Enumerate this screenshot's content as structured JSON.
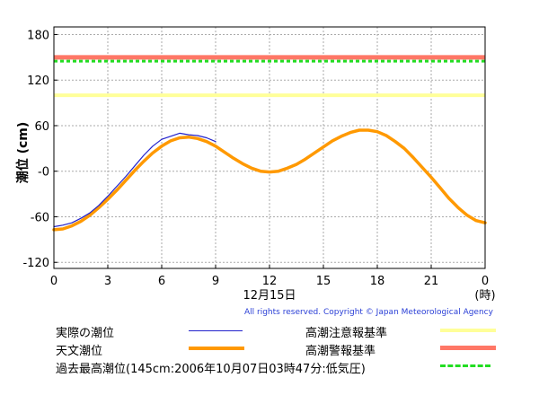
{
  "chart_data": {
    "type": "line",
    "ylabel": "潮位 (cm)",
    "date_label": "12月15日",
    "end_label": "(時)",
    "x_ticks": [
      "0",
      "3",
      "6",
      "9",
      "12",
      "15",
      "18",
      "21",
      "0"
    ],
    "y_ticks": [
      "180",
      "120",
      "60",
      "-0",
      "-60",
      "-120"
    ],
    "xlim": [
      0,
      24
    ],
    "ylim": [
      -128,
      190
    ],
    "grid": true,
    "series": [
      {
        "name": "実際の潮位",
        "color": "#2222cc",
        "x": [
          0,
          0.5,
          1,
          1.5,
          2,
          2.5,
          3,
          3.5,
          4,
          4.5,
          5,
          5.5,
          6,
          6.5,
          7,
          7.5,
          8,
          8.5,
          9
        ],
        "y": [
          -73,
          -71,
          -68,
          -62,
          -55,
          -45,
          -33,
          -20,
          -7,
          7,
          21,
          33,
          42,
          46,
          50,
          48,
          47,
          44,
          39
        ]
      },
      {
        "name": "天文潮位",
        "color": "#ff9900",
        "x": [
          0,
          0.5,
          1,
          1.5,
          2,
          2.5,
          3,
          3.5,
          4,
          4.5,
          5,
          5.5,
          6,
          6.5,
          7,
          7.5,
          8,
          8.5,
          9,
          9.5,
          10,
          10.5,
          11,
          11.5,
          12,
          12.5,
          13,
          13.5,
          14,
          14.5,
          15,
          15.5,
          16,
          16.5,
          17,
          17.5,
          18,
          18.5,
          19,
          19.5,
          20,
          20.5,
          21,
          21.5,
          22,
          22.5,
          23,
          23.5,
          24
        ],
        "y": [
          -77,
          -76,
          -72,
          -66,
          -58,
          -48,
          -37,
          -25,
          -12,
          1,
          13,
          24,
          33,
          40,
          44,
          45,
          43,
          39,
          33,
          25,
          17,
          10,
          4,
          0,
          -1,
          0,
          4,
          9,
          16,
          24,
          32,
          40,
          46,
          51,
          54,
          54,
          52,
          47,
          39,
          30,
          18,
          5,
          -8,
          -22,
          -36,
          -48,
          -58,
          -65,
          -68
        ]
      }
    ],
    "reference_lines": [
      {
        "name": "高潮注意報基準",
        "value": 100,
        "color": "#ffff99",
        "style": "solid"
      },
      {
        "name": "高潮警報基準",
        "value": 150,
        "color": "#ff7766",
        "style": "solid"
      },
      {
        "name": "過去最高潮位(145cm:2006年10月07日03時47分:低気圧)",
        "value": 145,
        "color": "#22dd22",
        "style": "dashed"
      }
    ]
  },
  "copyright": "All rights reserved. Copyright © Japan Meteorological Agency"
}
